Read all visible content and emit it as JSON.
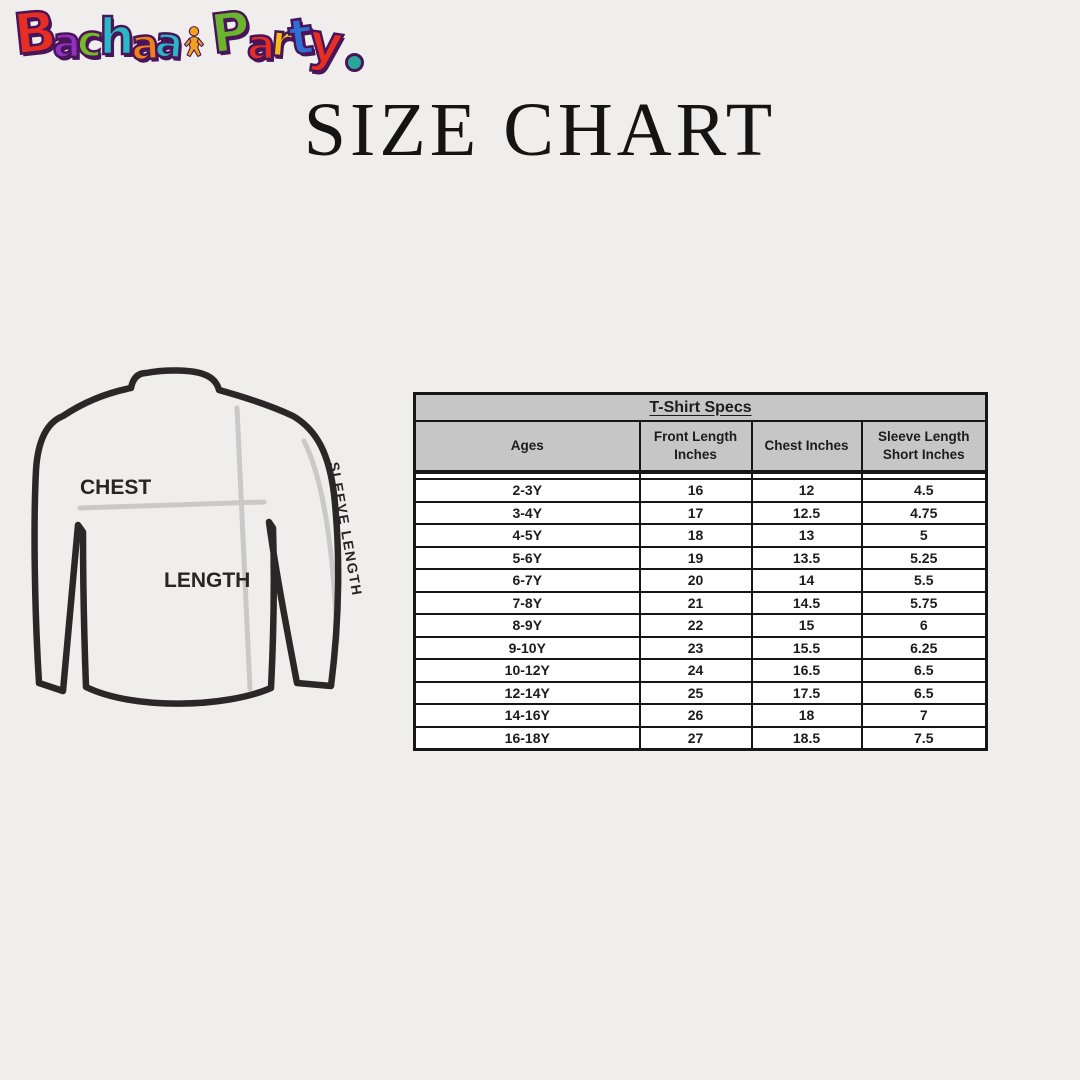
{
  "page": {
    "background": "#efeeec"
  },
  "logo": {
    "name": "Bachaa Party",
    "outline_color": "#4a1458",
    "letters": [
      {
        "ch": "B",
        "color": "#e62e24"
      },
      {
        "ch": "a",
        "color": "#9031c1"
      },
      {
        "ch": "c",
        "color": "#76b82a"
      },
      {
        "ch": "h",
        "color": "#29b8c6"
      },
      {
        "ch": "a",
        "color": "#f08019"
      },
      {
        "ch": "a",
        "color": "#29b8c6"
      },
      {
        "type": "kid",
        "color": "#f0a11e"
      },
      {
        "ch": "P",
        "color": "#6ab52d"
      },
      {
        "ch": "a",
        "color": "#e62e24"
      },
      {
        "ch": "r",
        "color": "#f5bb17"
      },
      {
        "ch": "t",
        "color": "#2e6fd6"
      },
      {
        "ch": "y",
        "color": "#e62e24"
      },
      {
        "type": "dot",
        "color": "#2aa79b"
      }
    ]
  },
  "title": "SIZE CHART",
  "diagram": {
    "chest_label": "CHEST",
    "length_label": "LENGTH",
    "sleeve_label": "SLEEVE LENGTH",
    "outline_color": "#2b2729",
    "guide_color": "#c9c9c9"
  },
  "table": {
    "title": "T-Shirt Specs",
    "header_bg": "#c6c6c6",
    "columns": [
      "Ages",
      "Front Length Inches",
      "Chest Inches",
      "Sleeve Length Short Inches"
    ],
    "rows": [
      [
        "2-3Y",
        "16",
        "12",
        "4.5"
      ],
      [
        "3-4Y",
        "17",
        "12.5",
        "4.75"
      ],
      [
        "4-5Y",
        "18",
        "13",
        "5"
      ],
      [
        "5-6Y",
        "19",
        "13.5",
        "5.25"
      ],
      [
        "6-7Y",
        "20",
        "14",
        "5.5"
      ],
      [
        "7-8Y",
        "21",
        "14.5",
        "5.75"
      ],
      [
        "8-9Y",
        "22",
        "15",
        "6"
      ],
      [
        "9-10Y",
        "23",
        "15.5",
        "6.25"
      ],
      [
        "10-12Y",
        "24",
        "16.5",
        "6.5"
      ],
      [
        "12-14Y",
        "25",
        "17.5",
        "6.5"
      ],
      [
        "14-16Y",
        "26",
        "18",
        "7"
      ],
      [
        "16-18Y",
        "27",
        "18.5",
        "7.5"
      ]
    ]
  },
  "chart_data": {
    "type": "table",
    "title": "T-Shirt Specs",
    "columns": [
      "Ages",
      "Front Length Inches",
      "Chest Inches",
      "Sleeve Length Short Inches"
    ],
    "rows": [
      [
        "2-3Y",
        16,
        12,
        4.5
      ],
      [
        "3-4Y",
        17,
        12.5,
        4.75
      ],
      [
        "4-5Y",
        18,
        13,
        5
      ],
      [
        "5-6Y",
        19,
        13.5,
        5.25
      ],
      [
        "6-7Y",
        20,
        14,
        5.5
      ],
      [
        "7-8Y",
        21,
        14.5,
        5.75
      ],
      [
        "8-9Y",
        22,
        15,
        6
      ],
      [
        "9-10Y",
        23,
        15.5,
        6.25
      ],
      [
        "10-12Y",
        24,
        16.5,
        6.5
      ],
      [
        "12-14Y",
        25,
        17.5,
        6.5
      ],
      [
        "14-16Y",
        26,
        18,
        7
      ],
      [
        "16-18Y",
        27,
        18.5,
        7.5
      ]
    ]
  }
}
